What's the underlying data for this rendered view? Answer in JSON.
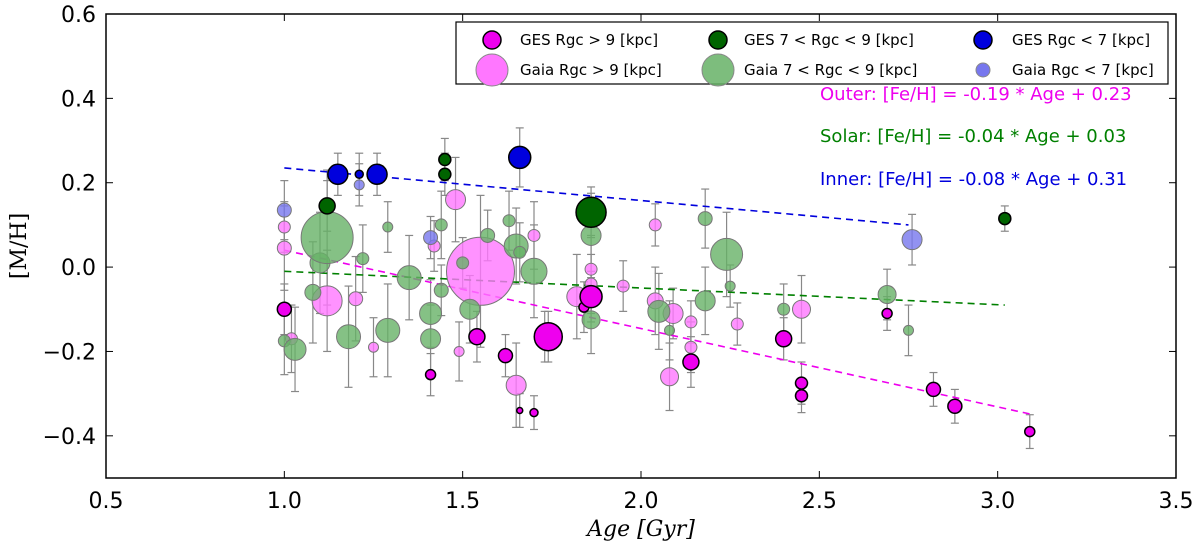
{
  "chart_data": {
    "type": "scatter",
    "xlabel": "Age [Gyr]",
    "ylabel": "[M/H]",
    "xlim": [
      0.5,
      3.5
    ],
    "ylim": [
      -0.5,
      0.6
    ],
    "xticks": [
      "0.5",
      "1.0",
      "1.5",
      "2.0",
      "2.5",
      "3.0",
      "3.5"
    ],
    "yticks": [
      "−0.4",
      "−0.2",
      "0.0",
      "0.2",
      "0.4",
      "0.6"
    ],
    "xtick_values": [
      0.5,
      1.0,
      1.5,
      2.0,
      2.5,
      3.0,
      3.5
    ],
    "ytick_values": [
      -0.4,
      -0.2,
      0.0,
      0.2,
      0.4,
      0.6
    ],
    "grid": false,
    "legend_position": "top-right",
    "legend": [
      {
        "label": "GES Rgc > 9 [kpc]",
        "color": "#ee00ee",
        "style": "ges"
      },
      {
        "label": "GES 7 < Rgc < 9 [kpc]",
        "color": "#006400",
        "style": "ges"
      },
      {
        "label": "GES Rgc < 7 [kpc]",
        "color": "#0000dd",
        "style": "ges"
      },
      {
        "label": "Gaia Rgc > 9 [kpc]",
        "color": "#ff77ff",
        "style": "gaia"
      },
      {
        "label": "Gaia 7 < Rgc < 9 [kpc]",
        "color": "#66b266",
        "style": "gaia"
      },
      {
        "label": "Gaia Rgc < 7 [kpc]",
        "color": "#7777ee",
        "style": "gaia"
      }
    ],
    "fits": [
      {
        "name": "Outer",
        "label": "Outer: [Fe/H] = -0.19 * Age + 0.23",
        "color": "#ee00ee",
        "x": [
          1.0,
          3.1
        ],
        "y": [
          0.04,
          -0.35
        ]
      },
      {
        "name": "Solar",
        "label": "Solar: [Fe/H] = -0.04 * Age + 0.03",
        "color": "#008000",
        "x": [
          1.0,
          3.02
        ],
        "y": [
          -0.01,
          -0.09
        ]
      },
      {
        "name": "Inner",
        "label": "Inner: [Fe/H] = -0.08 * Age + 0.31",
        "color": "#0000dd",
        "x": [
          1.0,
          2.75
        ],
        "y": [
          0.235,
          0.1
        ]
      }
    ],
    "series": [
      {
        "name": "Gaia Rgc > 9 [kpc]",
        "style": "gaia",
        "color": "#ff77ff",
        "points": [
          [
            1.0,
            0.095,
            0.06,
            6
          ],
          [
            1.0,
            0.045,
            0.1,
            7
          ],
          [
            1.02,
            -0.17,
            0.08,
            6
          ],
          [
            1.12,
            -0.08,
            0.12,
            15
          ],
          [
            1.2,
            -0.075,
            0.1,
            7
          ],
          [
            1.25,
            -0.19,
            0.07,
            5
          ],
          [
            1.42,
            0.05,
            0.06,
            6
          ],
          [
            1.48,
            0.16,
            0.1,
            10
          ],
          [
            1.49,
            -0.2,
            0.07,
            5
          ],
          [
            1.55,
            -0.01,
            0.18,
            34
          ],
          [
            1.65,
            -0.28,
            0.1,
            10
          ],
          [
            1.7,
            0.075,
            0.08,
            6
          ],
          [
            1.73,
            -0.165,
            0.06,
            10
          ],
          [
            1.82,
            -0.07,
            0.1,
            10
          ],
          [
            1.86,
            -0.005,
            0.08,
            6
          ],
          [
            1.86,
            -0.04,
            0.07,
            6
          ],
          [
            1.95,
            -0.045,
            0.06,
            6
          ],
          [
            2.04,
            0.1,
            0.05,
            6
          ],
          [
            2.04,
            -0.08,
            0.08,
            8
          ],
          [
            2.08,
            -0.26,
            0.08,
            9
          ],
          [
            2.09,
            -0.11,
            0.06,
            10
          ],
          [
            2.14,
            -0.13,
            0.05,
            6
          ],
          [
            2.14,
            -0.19,
            0.06,
            6
          ],
          [
            2.27,
            -0.135,
            0.05,
            6
          ],
          [
            2.45,
            -0.1,
            0.08,
            9
          ]
        ]
      },
      {
        "name": "Gaia 7 < Rgc < 9 [kpc]",
        "style": "gaia",
        "color": "#66b266",
        "points": [
          [
            1.0,
            -0.175,
            0.08,
            6
          ],
          [
            1.03,
            -0.195,
            0.1,
            11
          ],
          [
            1.08,
            -0.06,
            0.12,
            8
          ],
          [
            1.1,
            0.01,
            0.12,
            10
          ],
          [
            1.12,
            0.07,
            0.16,
            26
          ],
          [
            1.18,
            -0.165,
            0.12,
            12
          ],
          [
            1.22,
            0.02,
            0.08,
            6
          ],
          [
            1.29,
            0.095,
            0.06,
            5
          ],
          [
            1.29,
            -0.15,
            0.11,
            12
          ],
          [
            1.35,
            -0.025,
            0.1,
            12
          ],
          [
            1.41,
            -0.11,
            0.08,
            11
          ],
          [
            1.41,
            -0.17,
            0.08,
            10
          ],
          [
            1.44,
            -0.055,
            0.06,
            7
          ],
          [
            1.44,
            0.1,
            0.08,
            6
          ],
          [
            1.5,
            0.01,
            0.06,
            6
          ],
          [
            1.52,
            -0.1,
            0.08,
            10
          ],
          [
            1.57,
            0.075,
            0.06,
            7
          ],
          [
            1.63,
            0.11,
            0.07,
            6
          ],
          [
            1.65,
            0.05,
            0.09,
            12
          ],
          [
            1.66,
            0.035,
            0.07,
            6
          ],
          [
            1.7,
            -0.01,
            0.11,
            13
          ],
          [
            1.86,
            0.075,
            0.1,
            10
          ],
          [
            1.86,
            -0.125,
            0.08,
            9
          ],
          [
            2.05,
            -0.105,
            0.09,
            11
          ],
          [
            2.08,
            -0.15,
            0.07,
            5
          ],
          [
            2.18,
            0.115,
            0.07,
            7
          ],
          [
            2.18,
            -0.08,
            0.08,
            10
          ],
          [
            2.24,
            0.03,
            0.1,
            16
          ],
          [
            2.25,
            -0.045,
            0.05,
            5
          ],
          [
            2.4,
            -0.1,
            0.06,
            6
          ],
          [
            2.69,
            -0.065,
            0.06,
            9
          ],
          [
            2.75,
            -0.15,
            0.06,
            5
          ]
        ]
      },
      {
        "name": "Gaia Rgc < 7 [kpc]",
        "style": "gaia",
        "color": "#7777ee",
        "points": [
          [
            1.0,
            0.135,
            0.07,
            7
          ],
          [
            1.21,
            0.195,
            0.05,
            5
          ],
          [
            1.41,
            0.07,
            0.05,
            7
          ],
          [
            2.76,
            0.065,
            0.06,
            10
          ]
        ]
      },
      {
        "name": "GES Rgc > 9 [kpc]",
        "style": "ges",
        "color": "#ee00ee",
        "points": [
          [
            1.0,
            -0.1,
            0.06,
            7
          ],
          [
            1.41,
            -0.255,
            0.05,
            5
          ],
          [
            1.54,
            -0.165,
            0.06,
            8
          ],
          [
            1.62,
            -0.21,
            0.05,
            7
          ],
          [
            1.66,
            -0.34,
            0.04,
            3
          ],
          [
            1.7,
            -0.345,
            0.04,
            4
          ],
          [
            1.74,
            -0.165,
            0.06,
            14
          ],
          [
            1.84,
            -0.095,
            0.06,
            5
          ],
          [
            1.86,
            -0.07,
            0.06,
            11
          ],
          [
            2.14,
            -0.225,
            0.06,
            8
          ],
          [
            2.4,
            -0.17,
            0.05,
            8
          ],
          [
            2.45,
            -0.275,
            0.05,
            6
          ],
          [
            2.45,
            -0.305,
            0.04,
            6
          ],
          [
            2.69,
            -0.11,
            0.04,
            5
          ],
          [
            2.82,
            -0.29,
            0.04,
            7
          ],
          [
            2.88,
            -0.33,
            0.04,
            7
          ],
          [
            3.09,
            -0.39,
            0.04,
            5
          ]
        ]
      },
      {
        "name": "GES 7 < Rgc < 9 [kpc]",
        "style": "ges",
        "color": "#006400",
        "points": [
          [
            1.12,
            0.145,
            0.06,
            8
          ],
          [
            1.45,
            0.255,
            0.05,
            6
          ],
          [
            1.45,
            0.22,
            0.05,
            6
          ],
          [
            1.86,
            0.13,
            0.06,
            15
          ],
          [
            3.02,
            0.115,
            0.03,
            6
          ]
        ]
      },
      {
        "name": "GES Rgc < 7 [kpc]",
        "style": "ges",
        "color": "#0000dd",
        "points": [
          [
            1.15,
            0.22,
            0.05,
            10
          ],
          [
            1.21,
            0.22,
            0.05,
            4
          ],
          [
            1.26,
            0.22,
            0.05,
            10
          ],
          [
            1.66,
            0.26,
            0.07,
            11
          ]
        ]
      }
    ]
  }
}
